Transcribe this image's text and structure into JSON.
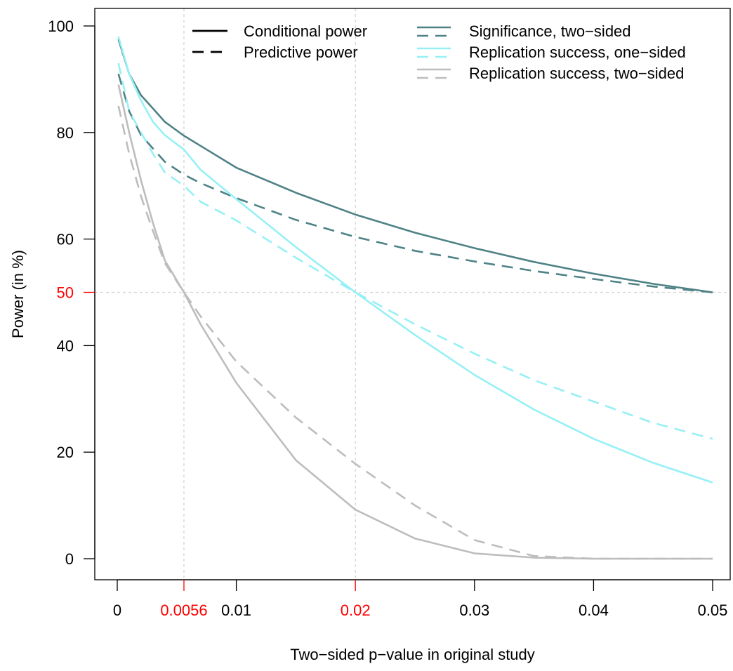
{
  "chart_data": {
    "type": "line",
    "title": "",
    "xlabel": "Two−sided p−value in original study",
    "ylabel": "Power (in %)",
    "xlim": [
      0,
      0.05
    ],
    "ylim": [
      0,
      100
    ],
    "grid": false,
    "x_ticks": [
      {
        "value": 0,
        "label": "0",
        "color": "#000000"
      },
      {
        "value": 0.0056,
        "label": "0.0056",
        "color": "#ff0000"
      },
      {
        "value": 0.01,
        "label": "0.01",
        "color": "#000000"
      },
      {
        "value": 0.02,
        "label": "0.02",
        "color": "#ff0000"
      },
      {
        "value": 0.03,
        "label": "0.03",
        "color": "#000000"
      },
      {
        "value": 0.04,
        "label": "0.04",
        "color": "#000000"
      },
      {
        "value": 0.05,
        "label": "0.05",
        "color": "#000000"
      }
    ],
    "y_ticks": [
      {
        "value": 0,
        "label": "0",
        "color": "#000000"
      },
      {
        "value": 20,
        "label": "20",
        "color": "#000000"
      },
      {
        "value": 40,
        "label": "40",
        "color": "#000000"
      },
      {
        "value": 50,
        "label": "50",
        "color": "#ff0000"
      },
      {
        "value": 60,
        "label": "60",
        "color": "#000000"
      },
      {
        "value": 80,
        "label": "80",
        "color": "#000000"
      },
      {
        "value": 100,
        "label": "100",
        "color": "#000000"
      }
    ],
    "reference_lines": {
      "vertical": [
        0.0056,
        0.02
      ],
      "horizontal": [
        50
      ],
      "color": "#d3d3d3"
    },
    "legend": {
      "placement": "top",
      "linetypes": [
        {
          "label": "Conditional power",
          "dash": "solid"
        },
        {
          "label": "Predictive power",
          "dash": "dashed"
        }
      ],
      "methods": [
        {
          "label": "Significance, two−sided",
          "color": "#4f8286"
        },
        {
          "label": "Replication success, one−sided",
          "color": "#96f0f5"
        },
        {
          "label": "Replication success, two−sided",
          "color": "#bdbdbd"
        }
      ]
    },
    "x": [
      0.0001,
      0.001,
      0.002,
      0.003,
      0.004,
      0.0056,
      0.007,
      0.01,
      0.015,
      0.02,
      0.025,
      0.03,
      0.035,
      0.04,
      0.045,
      0.05
    ],
    "series": [
      {
        "method": "Significance, two−sided",
        "power": "conditional",
        "color": "#4f8286",
        "dash": "solid",
        "values": [
          97.5,
          91.0,
          87.0,
          84.5,
          82.0,
          79.4,
          77.5,
          73.4,
          68.7,
          64.6,
          61.2,
          58.3,
          55.7,
          53.5,
          51.6,
          50.0
        ]
      },
      {
        "method": "Significance, two−sided",
        "power": "predictive",
        "color": "#4f8286",
        "dash": "dashed",
        "values": [
          91.0,
          84.0,
          79.5,
          77.0,
          74.5,
          72.1,
          70.5,
          67.7,
          63.6,
          60.4,
          57.8,
          55.8,
          54.0,
          52.5,
          51.1,
          50.0
        ]
      },
      {
        "method": "Replication success, one−sided",
        "power": "conditional",
        "color": "#96f0f5",
        "dash": "solid",
        "values": [
          98.0,
          91.0,
          86.0,
          82.0,
          79.5,
          76.8,
          73.0,
          67.5,
          58.5,
          50.0,
          42.0,
          34.5,
          28.0,
          22.5,
          18.0,
          14.3
        ]
      },
      {
        "method": "Replication success, one−sided",
        "power": "predictive",
        "color": "#96f0f5",
        "dash": "dashed",
        "values": [
          93.0,
          84.0,
          80.0,
          76.0,
          72.5,
          70.0,
          67.0,
          63.5,
          56.5,
          50.0,
          44.0,
          38.5,
          33.5,
          29.5,
          25.5,
          22.5
        ]
      },
      {
        "method": "Replication success, two−sided",
        "power": "conditional",
        "color": "#bdbdbd",
        "dash": "solid",
        "values": [
          89.0,
          80.0,
          71.0,
          63.0,
          56.0,
          50.0,
          44.0,
          33.0,
          18.5,
          9.2,
          3.8,
          1.0,
          0.2,
          0.0,
          0.0,
          0.0
        ]
      },
      {
        "method": "Replication success, two−sided",
        "power": "predictive",
        "color": "#bdbdbd",
        "dash": "dashed",
        "values": [
          85.0,
          76.0,
          68.0,
          61.5,
          55.5,
          50.0,
          45.5,
          37.0,
          26.5,
          17.8,
          10.0,
          3.5,
          0.5,
          0.0,
          0.0,
          0.0
        ]
      }
    ]
  }
}
